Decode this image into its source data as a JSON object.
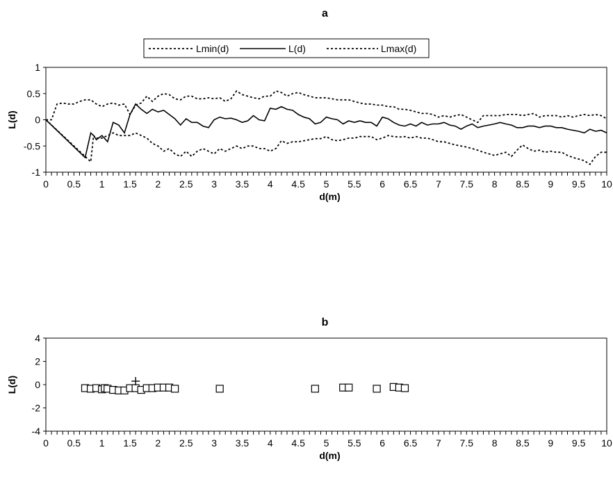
{
  "chart_data": [
    {
      "type": "line",
      "title": "a",
      "xlabel": "d(m)",
      "ylabel": "L(d)",
      "xlim": [
        0,
        10
      ],
      "ylim": [
        -1,
        1
      ],
      "xticks": [
        "0",
        "0.5",
        "1",
        "1.5",
        "2",
        "2.5",
        "3",
        "3.5",
        "4",
        "4.5",
        "5",
        "5.5",
        "6",
        "6.5",
        "7",
        "7.5",
        "8",
        "8.5",
        "9",
        "9.5",
        "10"
      ],
      "yticks": [
        "1",
        "0.5",
        "0",
        "-0.5",
        "-1"
      ],
      "grid": false,
      "legend": "top-center",
      "series": [
        {
          "name": "Lmin(d)",
          "style": "dotted",
          "x": [
            0,
            0.7,
            0.8,
            0.85,
            0.9,
            1.0,
            1.1,
            1.2,
            1.3,
            1.4,
            1.5,
            1.6,
            1.7,
            1.8,
            1.9,
            2.0,
            2.1,
            2.2,
            2.3,
            2.4,
            2.5,
            2.6,
            2.7,
            2.8,
            2.9,
            3.0,
            3.1,
            3.2,
            3.3,
            3.4,
            3.5,
            3.6,
            3.7,
            3.8,
            3.9,
            4.0,
            4.1,
            4.2,
            4.3,
            4.4,
            4.5,
            4.6,
            4.7,
            4.8,
            4.9,
            5.0,
            5.1,
            5.2,
            5.3,
            5.4,
            5.5,
            5.6,
            5.7,
            5.8,
            5.9,
            6.0,
            6.1,
            6.2,
            6.3,
            6.4,
            6.5,
            6.6,
            6.7,
            6.8,
            6.9,
            7.0,
            7.1,
            7.2,
            7.3,
            7.4,
            7.5,
            7.6,
            7.7,
            7.8,
            7.9,
            8.0,
            8.1,
            8.2,
            8.3,
            8.4,
            8.5,
            8.6,
            8.7,
            8.8,
            8.9,
            9.0,
            9.1,
            9.2,
            9.3,
            9.4,
            9.5,
            9.6,
            9.7,
            9.8,
            9.9,
            10.0
          ],
          "values": [
            0.0,
            -0.7,
            -0.8,
            -0.3,
            -0.35,
            -0.35,
            -0.3,
            -0.25,
            -0.3,
            -0.3,
            -0.3,
            -0.25,
            -0.3,
            -0.35,
            -0.45,
            -0.5,
            -0.6,
            -0.55,
            -0.65,
            -0.7,
            -0.6,
            -0.7,
            -0.6,
            -0.55,
            -0.6,
            -0.65,
            -0.55,
            -0.6,
            -0.55,
            -0.5,
            -0.55,
            -0.5,
            -0.5,
            -0.55,
            -0.55,
            -0.6,
            -0.55,
            -0.4,
            -0.45,
            -0.42,
            -0.42,
            -0.4,
            -0.38,
            -0.36,
            -0.36,
            -0.32,
            -0.38,
            -0.4,
            -0.38,
            -0.35,
            -0.35,
            -0.32,
            -0.32,
            -0.32,
            -0.38,
            -0.35,
            -0.3,
            -0.32,
            -0.33,
            -0.32,
            -0.35,
            -0.32,
            -0.35,
            -0.35,
            -0.38,
            -0.42,
            -0.42,
            -0.45,
            -0.48,
            -0.5,
            -0.52,
            -0.55,
            -0.58,
            -0.62,
            -0.65,
            -0.68,
            -0.65,
            -0.62,
            -0.7,
            -0.58,
            -0.48,
            -0.55,
            -0.6,
            -0.58,
            -0.62,
            -0.6,
            -0.62,
            -0.62,
            -0.68,
            -0.72,
            -0.75,
            -0.78,
            -0.85,
            -0.7,
            -0.62,
            -0.62
          ]
        },
        {
          "name": "L(d)",
          "style": "solid",
          "x": [
            0,
            0.7,
            0.8,
            0.85,
            0.9,
            1.0,
            1.1,
            1.2,
            1.3,
            1.4,
            1.5,
            1.6,
            1.7,
            1.8,
            1.9,
            2.0,
            2.1,
            2.2,
            2.3,
            2.4,
            2.5,
            2.6,
            2.7,
            2.8,
            2.9,
            3.0,
            3.1,
            3.2,
            3.3,
            3.4,
            3.5,
            3.6,
            3.7,
            3.8,
            3.9,
            4.0,
            4.1,
            4.2,
            4.3,
            4.4,
            4.5,
            4.6,
            4.7,
            4.8,
            4.9,
            5.0,
            5.1,
            5.2,
            5.3,
            5.4,
            5.5,
            5.6,
            5.7,
            5.8,
            5.9,
            6.0,
            6.1,
            6.2,
            6.3,
            6.4,
            6.5,
            6.6,
            6.7,
            6.8,
            6.9,
            7.0,
            7.1,
            7.2,
            7.3,
            7.4,
            7.5,
            7.6,
            7.7,
            7.8,
            7.9,
            8.0,
            8.1,
            8.2,
            8.3,
            8.4,
            8.5,
            8.6,
            8.7,
            8.8,
            8.9,
            9.0,
            9.1,
            9.2,
            9.3,
            9.4,
            9.5,
            9.6,
            9.7,
            9.8,
            9.9,
            10.0
          ],
          "values": [
            0.0,
            -0.72,
            -0.25,
            -0.3,
            -0.38,
            -0.3,
            -0.42,
            -0.05,
            -0.1,
            -0.25,
            0.1,
            0.3,
            0.2,
            0.12,
            0.2,
            0.15,
            0.18,
            0.1,
            0.02,
            -0.1,
            0.02,
            -0.05,
            -0.05,
            -0.12,
            -0.15,
            0.0,
            0.05,
            0.02,
            0.03,
            0.0,
            -0.05,
            -0.02,
            0.08,
            0.0,
            -0.02,
            0.22,
            0.2,
            0.25,
            0.2,
            0.18,
            0.1,
            0.05,
            0.02,
            -0.08,
            -0.05,
            0.05,
            0.02,
            0.0,
            -0.08,
            -0.02,
            -0.05,
            -0.02,
            -0.05,
            -0.05,
            -0.12,
            0.05,
            0.02,
            -0.05,
            -0.1,
            -0.12,
            -0.08,
            -0.12,
            -0.05,
            -0.1,
            -0.08,
            -0.08,
            -0.05,
            -0.1,
            -0.12,
            -0.18,
            -0.12,
            -0.08,
            -0.15,
            -0.12,
            -0.1,
            -0.08,
            -0.05,
            -0.08,
            -0.1,
            -0.15,
            -0.15,
            -0.12,
            -0.12,
            -0.15,
            -0.12,
            -0.12,
            -0.15,
            -0.15,
            -0.18,
            -0.2,
            -0.22,
            -0.25,
            -0.18,
            -0.22,
            -0.2,
            -0.25
          ]
        },
        {
          "name": "Lmax(d)",
          "style": "dotted",
          "x": [
            0,
            0.1,
            0.2,
            0.3,
            0.4,
            0.5,
            0.6,
            0.7,
            0.8,
            0.9,
            1.0,
            1.1,
            1.2,
            1.3,
            1.4,
            1.5,
            1.6,
            1.7,
            1.8,
            1.9,
            2.0,
            2.1,
            2.2,
            2.3,
            2.4,
            2.5,
            2.6,
            2.7,
            2.8,
            2.9,
            3.0,
            3.1,
            3.2,
            3.3,
            3.4,
            3.5,
            3.6,
            3.7,
            3.8,
            3.9,
            4.0,
            4.1,
            4.2,
            4.3,
            4.4,
            4.5,
            4.6,
            4.7,
            4.8,
            4.9,
            5.0,
            5.1,
            5.2,
            5.3,
            5.4,
            5.5,
            5.6,
            5.7,
            5.8,
            5.9,
            6.0,
            6.1,
            6.2,
            6.3,
            6.4,
            6.5,
            6.6,
            6.7,
            6.8,
            6.9,
            7.0,
            7.1,
            7.2,
            7.3,
            7.4,
            7.5,
            7.6,
            7.7,
            7.8,
            7.9,
            8.0,
            8.1,
            8.2,
            8.3,
            8.4,
            8.5,
            8.6,
            8.7,
            8.8,
            8.9,
            9.0,
            9.1,
            9.2,
            9.3,
            9.4,
            9.5,
            9.6,
            9.7,
            9.8,
            9.9,
            10.0
          ],
          "values": [
            0.0,
            0.0,
            0.3,
            0.32,
            0.3,
            0.3,
            0.35,
            0.38,
            0.38,
            0.3,
            0.25,
            0.3,
            0.32,
            0.28,
            0.3,
            0.1,
            0.28,
            0.32,
            0.45,
            0.35,
            0.45,
            0.5,
            0.48,
            0.4,
            0.38,
            0.45,
            0.45,
            0.4,
            0.4,
            0.42,
            0.4,
            0.42,
            0.35,
            0.4,
            0.55,
            0.48,
            0.45,
            0.42,
            0.4,
            0.45,
            0.45,
            0.55,
            0.52,
            0.45,
            0.5,
            0.52,
            0.48,
            0.45,
            0.42,
            0.42,
            0.42,
            0.4,
            0.38,
            0.38,
            0.38,
            0.35,
            0.32,
            0.3,
            0.3,
            0.28,
            0.28,
            0.25,
            0.25,
            0.2,
            0.2,
            0.18,
            0.15,
            0.12,
            0.12,
            0.1,
            0.05,
            0.08,
            0.05,
            0.08,
            0.1,
            0.05,
            0.0,
            -0.05,
            0.08,
            0.08,
            0.08,
            0.08,
            0.1,
            0.1,
            0.1,
            0.08,
            0.1,
            0.12,
            0.05,
            0.08,
            0.08,
            0.08,
            0.05,
            0.08,
            0.05,
            0.08,
            0.1,
            0.08,
            0.1,
            0.08,
            0.02
          ]
        }
      ]
    },
    {
      "type": "scatter",
      "title": "b",
      "xlabel": "d(m)",
      "ylabel": "L(d)",
      "xlim": [
        0,
        10
      ],
      "ylim": [
        -4,
        4
      ],
      "xticks": [
        "0",
        "0.5",
        "1",
        "1.5",
        "2",
        "2.5",
        "3",
        "3.5",
        "4",
        "4.5",
        "5",
        "5.5",
        "6",
        "6.5",
        "7",
        "7.5",
        "8",
        "8.5",
        "9",
        "9.5",
        "10"
      ],
      "yticks": [
        "4",
        "2",
        "0",
        "-2",
        "-4"
      ],
      "grid": false,
      "series": [
        {
          "marker": "square",
          "x": [
            0.7,
            0.8,
            0.9,
            1.0,
            1.05,
            1.1,
            1.2,
            1.3,
            1.4,
            1.5,
            1.6,
            1.7,
            1.8,
            1.9,
            2.0,
            2.1,
            2.2,
            2.3,
            3.1,
            4.8,
            5.3,
            5.4,
            5.9,
            6.2,
            6.3,
            6.4
          ],
          "values": [
            -0.3,
            -0.35,
            -0.3,
            -0.4,
            -0.3,
            -0.35,
            -0.45,
            -0.5,
            -0.5,
            -0.3,
            -0.3,
            -0.45,
            -0.3,
            -0.3,
            -0.25,
            -0.25,
            -0.25,
            -0.35,
            -0.35,
            -0.35,
            -0.25,
            -0.25,
            -0.35,
            -0.2,
            -0.25,
            -0.3
          ]
        },
        {
          "marker": "plus",
          "x": [
            1.6
          ],
          "values": [
            0.3
          ]
        }
      ]
    }
  ]
}
